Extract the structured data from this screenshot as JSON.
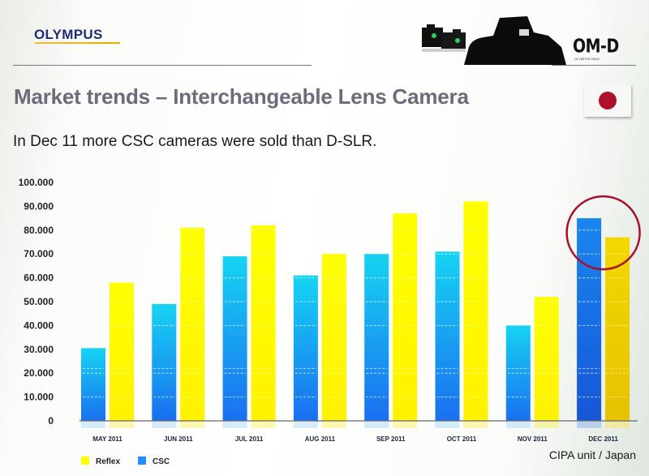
{
  "header": {
    "brand": "OLYMPUS",
    "product_logo": "OM-D",
    "product_logo_sub": "OLYMPUS OM-D",
    "flag": "japan-flag"
  },
  "slide": {
    "title": "Market trends – Interchangeable Lens Camera",
    "subtitle": "In Dec 11 more CSC cameras were sold than D-SLR.",
    "source": "CIPA unit / Japan",
    "highlight": "DEC 2011"
  },
  "colors": {
    "reflex": "#ffff00",
    "csc": "#1e90ff",
    "highlight_circle": "#a8102a",
    "brand": "#1e2e7a",
    "title": "#6e6a7c"
  },
  "chart_data": {
    "type": "bar",
    "title": "Market trends – Interchangeable Lens Camera",
    "xlabel": "",
    "ylabel": "",
    "ylim": [
      0,
      100000
    ],
    "yticks": [
      0,
      10000,
      20000,
      30000,
      40000,
      50000,
      60000,
      70000,
      80000,
      90000,
      100000
    ],
    "ytick_labels": [
      "0",
      "10.000",
      "20.000",
      "30.000",
      "40.000",
      "50.000",
      "60.000",
      "70.000",
      "80.000",
      "90.000",
      "100.000"
    ],
    "categories": [
      "MAY 2011",
      "JUN 2011",
      "JUL 2011",
      "AUG 2011",
      "SEP 2011",
      "OCT 2011",
      "NOV 2011",
      "DEC 2011"
    ],
    "series": [
      {
        "name": "CSC",
        "values": [
          30500,
          49000,
          69000,
          61000,
          70000,
          71000,
          40000,
          85000
        ]
      },
      {
        "name": "Reflex",
        "values": [
          58000,
          81000,
          82000,
          70000,
          87000,
          92000,
          52000,
          77000
        ]
      }
    ],
    "legend": {
      "placement": "bottom-left",
      "entries": [
        "Reflex",
        "CSC"
      ]
    },
    "grid": false,
    "annotation": "circle around DEC 2011 bars"
  }
}
